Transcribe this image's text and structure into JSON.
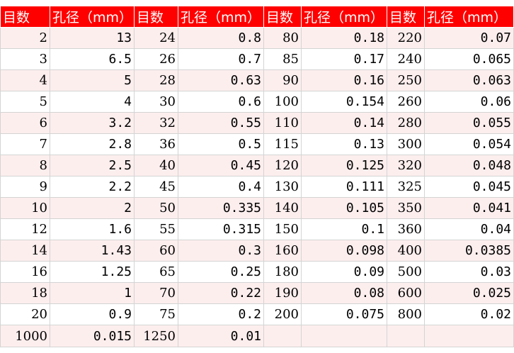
{
  "headers": [
    "目数",
    "孔径（mm）",
    "目数",
    "孔径（mm）",
    "目数",
    "孔径（mm）",
    "目数",
    "孔径（mm）"
  ],
  "rows": [
    [
      "2",
      "13",
      "24",
      "0.8",
      "80",
      "0.18",
      "220",
      "0.07"
    ],
    [
      "3",
      "6.5",
      "26",
      "0.7",
      "85",
      "0.17",
      "240",
      "0.065"
    ],
    [
      "4",
      "5",
      "28",
      "0.63",
      "90",
      "0.16",
      "250",
      "0.063"
    ],
    [
      "5",
      "4",
      "30",
      "0.6",
      "100",
      "0.154",
      "260",
      "0.06"
    ],
    [
      "6",
      "3.2",
      "32",
      "0.55",
      "110",
      "0.14",
      "280",
      "0.055"
    ],
    [
      "7",
      "2.8",
      "36",
      "0.5",
      "115",
      "0.13",
      "300",
      "0.054"
    ],
    [
      "8",
      "2.5",
      "40",
      "0.45",
      "120",
      "0.125",
      "320",
      "0.048"
    ],
    [
      "9",
      "2.2",
      "45",
      "0.4",
      "130",
      "0.111",
      "325",
      "0.045"
    ],
    [
      "10",
      "2",
      "50",
      "0.335",
      "140",
      "0.105",
      "350",
      "0.041"
    ],
    [
      "12",
      "1.6",
      "55",
      "0.315",
      "150",
      "0.1",
      "360",
      "0.04"
    ],
    [
      "14",
      "1.43",
      "60",
      "0.3",
      "160",
      "0.098",
      "400",
      "0.0385"
    ],
    [
      "16",
      "1.25",
      "65",
      "0.25",
      "180",
      "0.09",
      "500",
      "0.03"
    ],
    [
      "18",
      "1",
      "70",
      "0.22",
      "190",
      "0.08",
      "600",
      "0.025"
    ],
    [
      "20",
      "0.9",
      "75",
      "0.2",
      "200",
      "0.075",
      "800",
      "0.02"
    ],
    [
      "1000",
      "0.015",
      "1250",
      "0.01",
      "",
      "",
      "",
      ""
    ]
  ]
}
